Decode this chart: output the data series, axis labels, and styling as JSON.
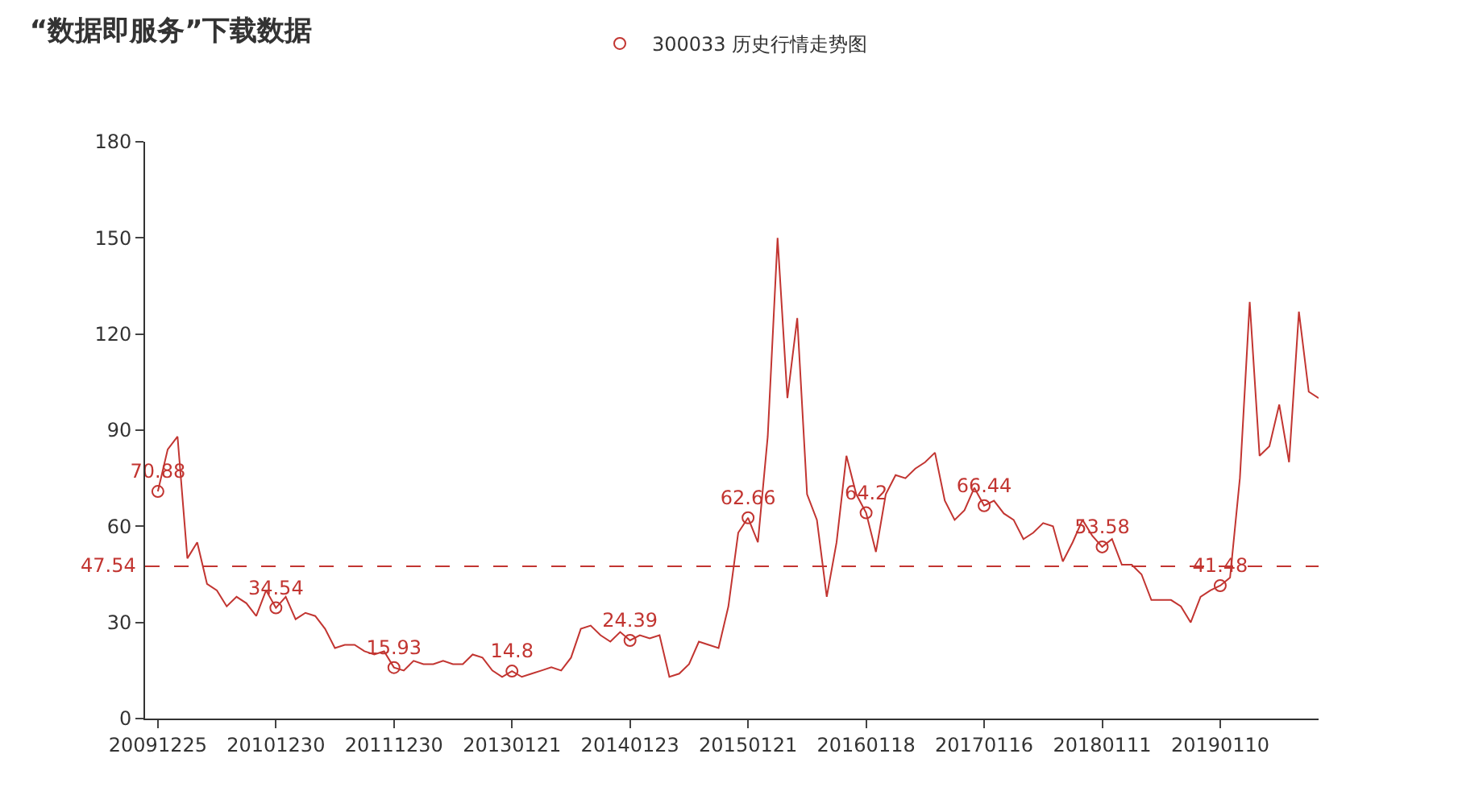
{
  "chart_data": {
    "type": "line",
    "title": "“数据即服务”下载数据",
    "categories": [
      "20091225",
      null,
      null,
      null,
      null,
      null,
      null,
      null,
      null,
      null,
      null,
      null,
      "20101230",
      null,
      null,
      null,
      null,
      null,
      null,
      null,
      null,
      null,
      null,
      null,
      "20111230",
      null,
      null,
      null,
      null,
      null,
      null,
      null,
      null,
      null,
      null,
      null,
      "20130121",
      null,
      null,
      null,
      null,
      null,
      null,
      null,
      null,
      null,
      null,
      null,
      "20140123",
      null,
      null,
      null,
      null,
      null,
      null,
      null,
      null,
      null,
      null,
      null,
      "20150121",
      null,
      null,
      null,
      null,
      null,
      null,
      null,
      null,
      null,
      null,
      null,
      "20160118",
      null,
      null,
      null,
      null,
      null,
      null,
      null,
      null,
      null,
      null,
      null,
      "20170116",
      null,
      null,
      null,
      null,
      null,
      null,
      null,
      null,
      null,
      null,
      null,
      "20180111",
      null,
      null,
      null,
      null,
      null,
      null,
      null,
      null,
      null,
      null,
      null,
      "20190110",
      null,
      null,
      null,
      null,
      null,
      null,
      null,
      null,
      null,
      null
    ],
    "series": [
      {
        "name": "300033 历史行情走势图",
        "color": "#c23531",
        "values": [
          70.88,
          84,
          88,
          50,
          55,
          42,
          40,
          35,
          38,
          36,
          32,
          40,
          34.54,
          38,
          31,
          33,
          32,
          28,
          22,
          23,
          23,
          21,
          20,
          21,
          15.93,
          15,
          18,
          17,
          17,
          18,
          17,
          17,
          20,
          19,
          15,
          13,
          14.8,
          13,
          14,
          15,
          16,
          15,
          19,
          28,
          29,
          26,
          24,
          27,
          24.39,
          26,
          25,
          26,
          13,
          14,
          17,
          24,
          23,
          22,
          35,
          58,
          62.66,
          55,
          88,
          150,
          100,
          125,
          70,
          62,
          38,
          55,
          82,
          70,
          64.2,
          52,
          70,
          76,
          75,
          78,
          80,
          83,
          68,
          62,
          65,
          72,
          66.44,
          68,
          64,
          62,
          56,
          58,
          61,
          60,
          49,
          55,
          62,
          57,
          53.58,
          56,
          48,
          48,
          45,
          37,
          37,
          37,
          35,
          30,
          38,
          40,
          41.48,
          44,
          75,
          130,
          82,
          85,
          98,
          80,
          127,
          102,
          100
        ],
        "value_labels": [
          "70.88",
          null,
          null,
          null,
          null,
          null,
          null,
          null,
          null,
          null,
          null,
          null,
          "34.54",
          null,
          null,
          null,
          null,
          null,
          null,
          null,
          null,
          null,
          null,
          null,
          "15.93",
          null,
          null,
          null,
          null,
          null,
          null,
          null,
          null,
          null,
          null,
          null,
          "14.8",
          null,
          null,
          null,
          null,
          null,
          null,
          null,
          null,
          null,
          null,
          null,
          "24.39",
          null,
          null,
          null,
          null,
          null,
          null,
          null,
          null,
          null,
          null,
          null,
          "62.66",
          null,
          null,
          null,
          null,
          null,
          null,
          null,
          null,
          null,
          null,
          null,
          "64.2",
          null,
          null,
          null,
          null,
          null,
          null,
          null,
          null,
          null,
          null,
          null,
          "66.44",
          null,
          null,
          null,
          null,
          null,
          null,
          null,
          null,
          null,
          null,
          null,
          "53.58",
          null,
          null,
          null,
          null,
          null,
          null,
          null,
          null,
          null,
          null,
          null,
          "41.48",
          null,
          null,
          null,
          null,
          null,
          null,
          null,
          null,
          null,
          null
        ]
      }
    ],
    "ylim": [
      0,
      180
    ],
    "yticks": [
      0,
      30,
      60,
      90,
      120,
      150,
      180
    ],
    "ref_lines": [
      {
        "axis": "y",
        "value": 47.54,
        "label": "47.54",
        "color": "#c23531",
        "line_style": "dashed"
      }
    ],
    "legend": "top"
  }
}
